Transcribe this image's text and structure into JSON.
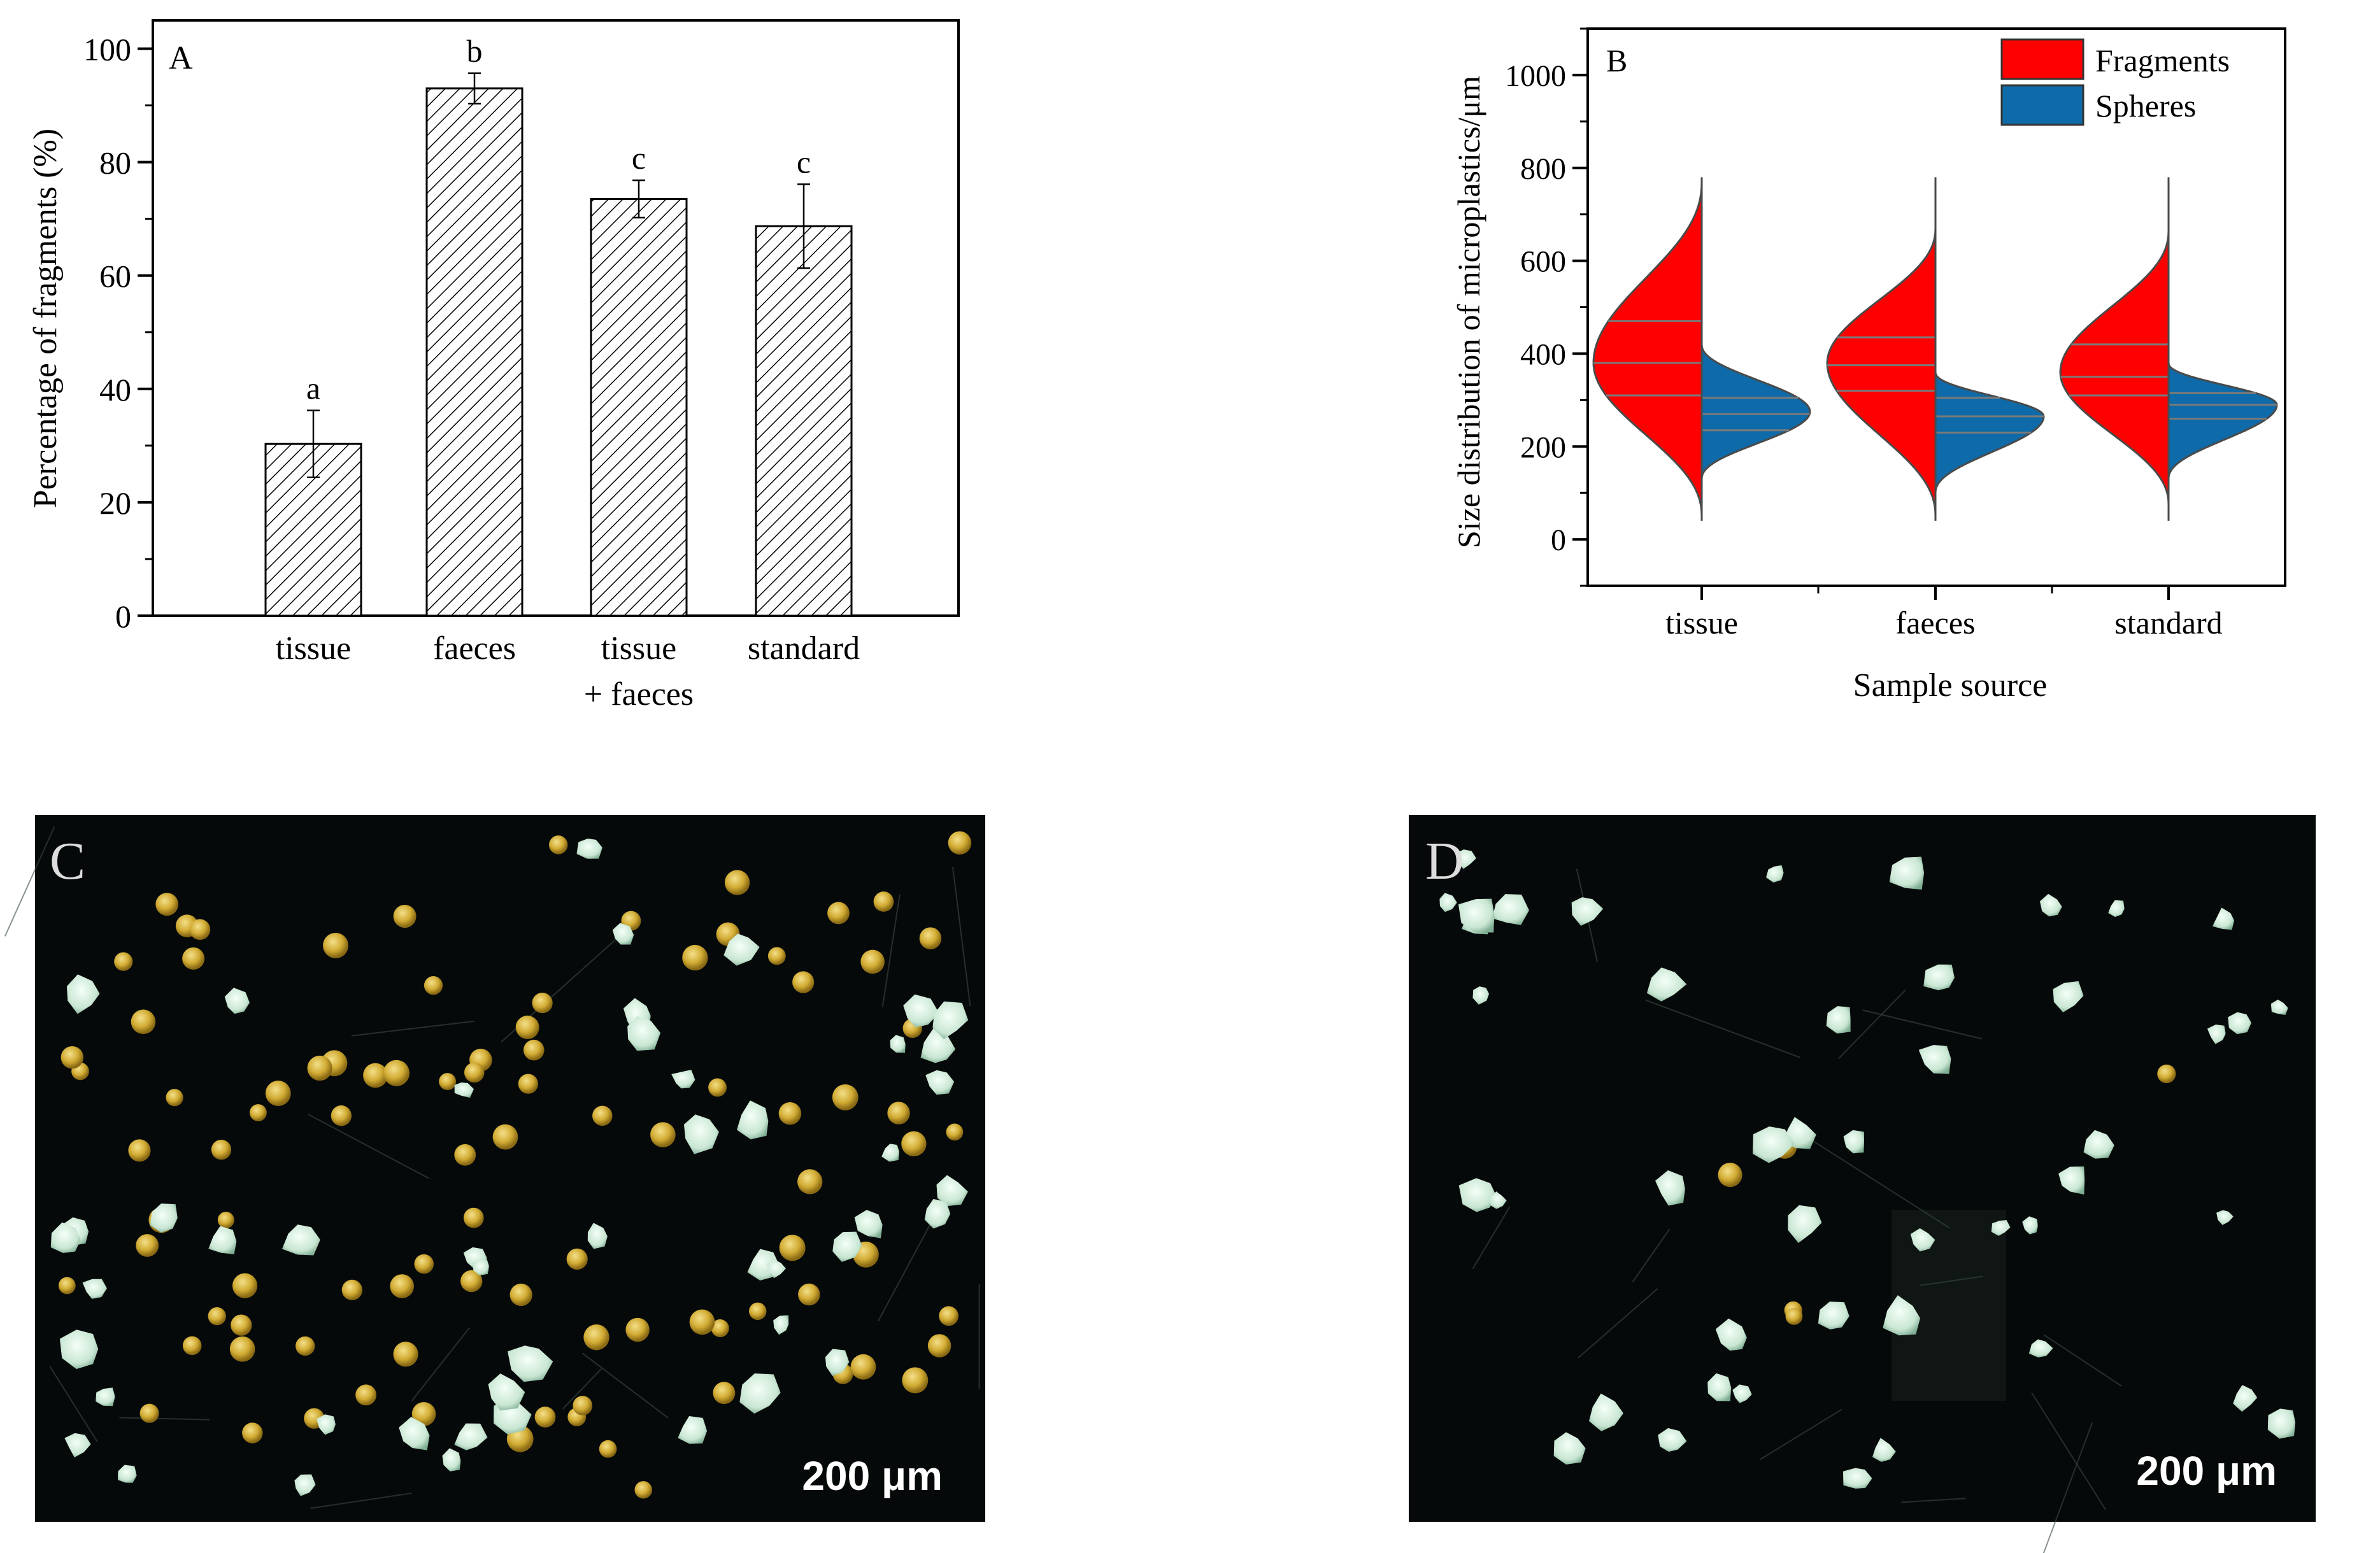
{
  "chart_data": [
    {
      "panel": "A",
      "type": "bar",
      "ylabel": "Percentage of fragments (%)",
      "ylim": [
        0,
        105
      ],
      "yticks": [
        0,
        20,
        40,
        60,
        80,
        100
      ],
      "categories": [
        "tissue",
        "faeces",
        "tissue",
        "standard"
      ],
      "category_sublabels": [
        "",
        "",
        "+ faeces",
        ""
      ],
      "values": [
        30.3,
        93.0,
        73.5,
        68.7
      ],
      "errors": [
        5.9,
        2.7,
        3.3,
        7.4
      ],
      "significance": [
        "a",
        "b",
        "c",
        "c"
      ],
      "bar_style": "diagonal hatch"
    },
    {
      "panel": "B",
      "type": "violin",
      "xlabel": "Sample source",
      "ylabel": "Size distribution of microplastics/μm",
      "ylim": [
        -100,
        1100
      ],
      "yticks": [
        0,
        200,
        400,
        600,
        800,
        1000
      ],
      "categories": [
        "tissue",
        "faeces",
        "standard"
      ],
      "legend": [
        {
          "name": "Fragments",
          "color": "#ff0000"
        },
        {
          "name": "Spheres",
          "color": "#0e6aa8"
        }
      ],
      "legend_position": "top-right",
      "series": [
        {
          "name": "Fragments",
          "min": [
            50,
            50,
            75
          ],
          "max": [
            770,
            670,
            665
          ],
          "peak": [
            380,
            380,
            360
          ],
          "quartiles": [
            [
              310,
              380,
              470
            ],
            [
              320,
              375,
              435
            ],
            [
              310,
              350,
              420
            ]
          ]
        },
        {
          "name": "Spheres",
          "min": [
            130,
            100,
            130
          ],
          "max": [
            420,
            360,
            380
          ],
          "peak": [
            275,
            265,
            290
          ],
          "quartiles": [
            [
              235,
              270,
              305
            ],
            [
              230,
              265,
              305
            ],
            [
              260,
              290,
              315
            ]
          ]
        }
      ]
    }
  ],
  "photos": [
    {
      "panel": "C",
      "scale_bar": "200 μm"
    },
    {
      "panel": "D",
      "scale_bar": "200 μm"
    }
  ],
  "colors": {
    "fragments": "#ff0000",
    "spheres": "#0e6aa8",
    "photo_bg": "#06090a",
    "particle_fragment": "#cfe8d8",
    "particle_sphere": "#d9b53a"
  }
}
